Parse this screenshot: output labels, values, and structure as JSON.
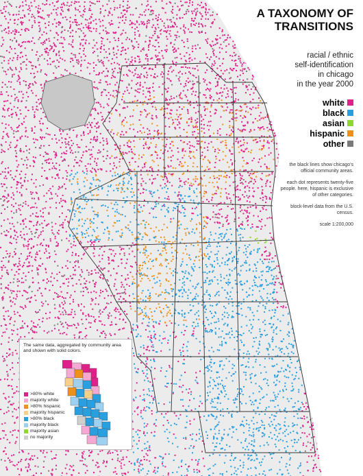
{
  "title": {
    "line1": "A TAXONOMY OF",
    "line2": "TRANSITIONS"
  },
  "subtitle": {
    "line1": "racial / ethnic",
    "line2": "self-identification",
    "line3": "in chicago",
    "line4": "in the year 2000"
  },
  "legend": [
    {
      "label": "white",
      "color": "#e0208a"
    },
    {
      "label": "black",
      "color": "#2a9fe0"
    },
    {
      "label": "asian",
      "color": "#90d830"
    },
    {
      "label": "hispanic",
      "color": "#f09018"
    },
    {
      "label": "other",
      "color": "#7a7a7a"
    }
  ],
  "notes": {
    "p1": "the black lines show chicago's official community areas.",
    "p2": "each dot represents twenty-five people. here, hispanic is exclusive of other categories.",
    "p3": "block-level data from the U.S. census.",
    "scale": "scale 1:200,000"
  },
  "inset": {
    "caption": "The same data, aggregated by community area and shown with solid colors.",
    "legend": [
      {
        "label": ">80% white",
        "color": "#e0208a"
      },
      {
        "label": "majority white",
        "color": "#f4a8d2"
      },
      {
        "label": ">80% hispanic",
        "color": "#f09018"
      },
      {
        "label": "majority hispanic",
        "color": "#f8cf88"
      },
      {
        "label": ">80% black",
        "color": "#2a9fe0"
      },
      {
        "label": "majority black",
        "color": "#9ed0f0"
      },
      {
        "label": "majority asian",
        "color": "#90d830"
      },
      {
        "label": "no majority",
        "color": "#cfcfcf"
      }
    ]
  }
}
